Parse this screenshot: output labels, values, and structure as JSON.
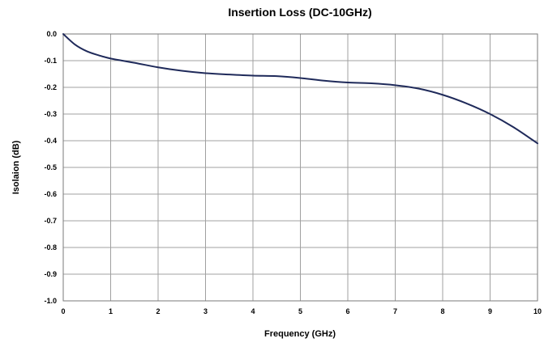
{
  "chart_data": {
    "type": "line",
    "title": "Insertion Loss (DC-10GHz)",
    "xlabel": "Frequency (GHz)",
    "ylabel": "Isolaion (dB)",
    "xlim": [
      0,
      10
    ],
    "ylim": [
      -1.0,
      0.0
    ],
    "x_ticks": [
      "0",
      "1",
      "2",
      "3",
      "4",
      "5",
      "6",
      "7",
      "8",
      "9",
      "10"
    ],
    "y_ticks": [
      "0.0",
      "-0.1",
      "-0.2",
      "-0.3",
      "-0.4",
      "-0.5",
      "-0.6",
      "-0.7",
      "-0.8",
      "-0.9",
      "-1.0"
    ],
    "grid": true,
    "line_color": "#1f2a5a",
    "series": [
      {
        "x": [
          0,
          0.25,
          0.5,
          0.75,
          1,
          1.5,
          2,
          2.5,
          3,
          3.5,
          4,
          4.5,
          5,
          5.5,
          6,
          6.5,
          7,
          7.5,
          8,
          8.5,
          9,
          9.5,
          10
        ],
        "y": [
          0,
          -0.04,
          -0.065,
          -0.08,
          -0.092,
          -0.108,
          -0.125,
          -0.138,
          -0.147,
          -0.152,
          -0.156,
          -0.158,
          -0.165,
          -0.175,
          -0.182,
          -0.185,
          -0.192,
          -0.205,
          -0.228,
          -0.26,
          -0.3,
          -0.35,
          -0.41
        ]
      }
    ]
  }
}
